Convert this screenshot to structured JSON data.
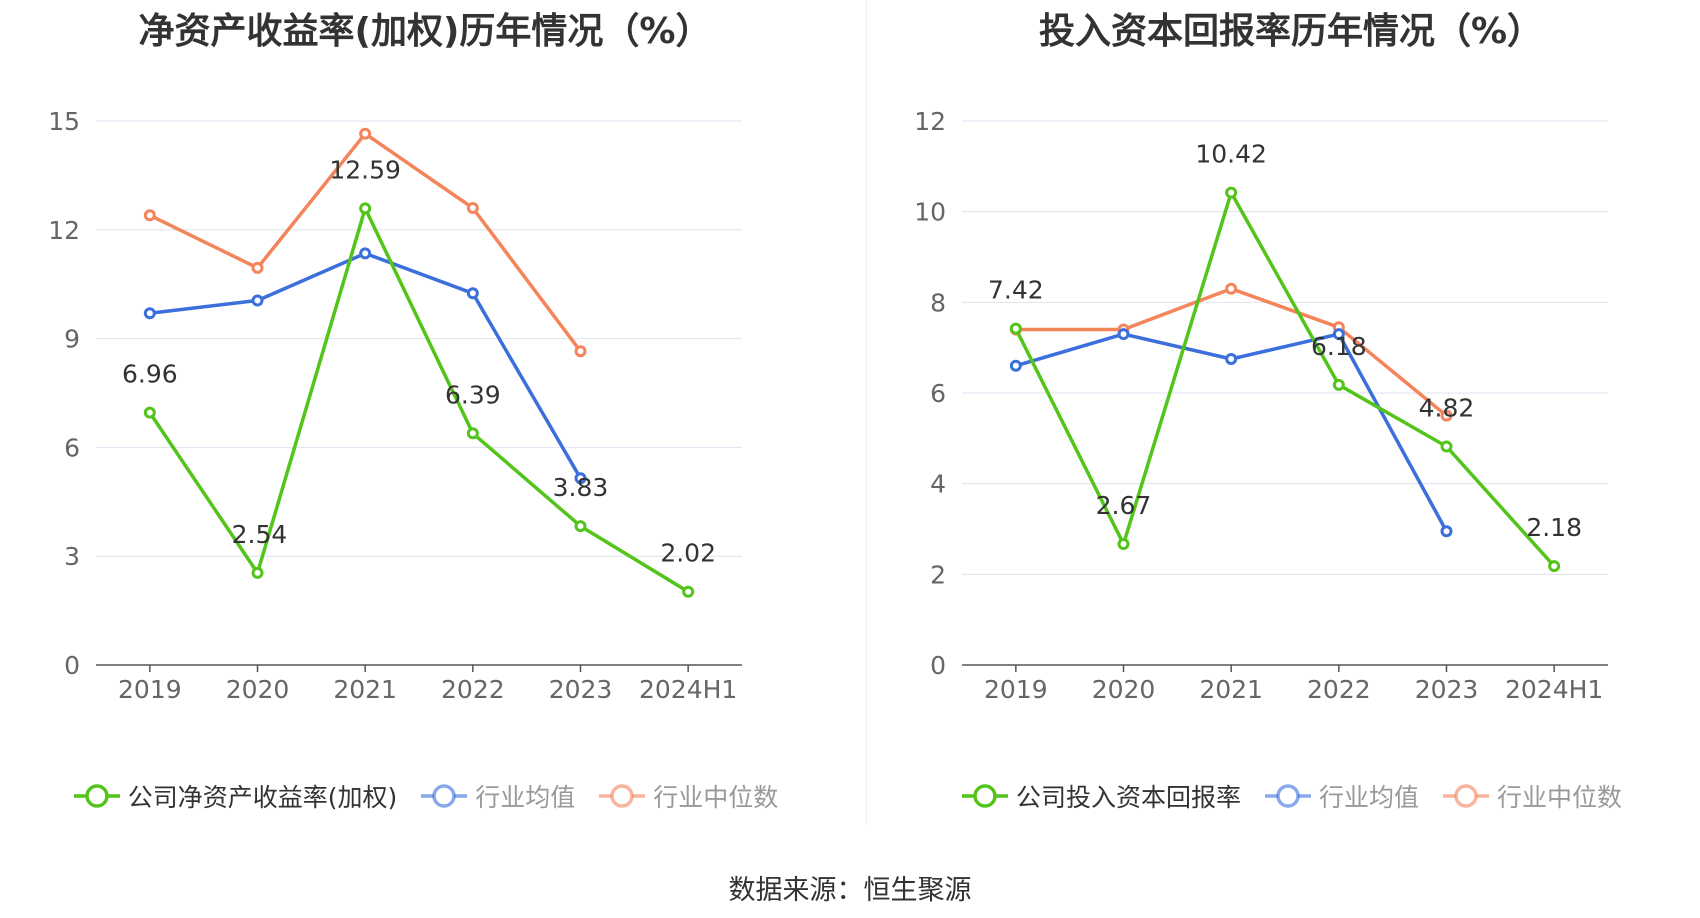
{
  "chart_data": [
    {
      "type": "line",
      "title": "净资产收益率(加权)历年情况（%）",
      "categories": [
        "2019",
        "2020",
        "2021",
        "2022",
        "2023",
        "2024H1"
      ],
      "ylim": [
        0,
        15
      ],
      "yticks": [
        0,
        3,
        6,
        9,
        12,
        15
      ],
      "grid": true,
      "legend_position": "bottom",
      "series": [
        {
          "name": "公司净资产收益率(加权)",
          "color": "#52c41a",
          "values": [
            6.96,
            2.54,
            12.59,
            6.39,
            3.83,
            2.02
          ],
          "labels": [
            "6.96",
            "2.54",
            "12.59",
            "6.39",
            "3.83",
            "2.02"
          ]
        },
        {
          "name": "行业均值",
          "color": "#3a6fdc",
          "values": [
            9.7,
            10.05,
            11.35,
            10.25,
            5.15,
            null
          ]
        },
        {
          "name": "行业中位数",
          "color": "#f4845a",
          "values": [
            12.4,
            10.95,
            14.65,
            12.6,
            8.65,
            null
          ]
        }
      ]
    },
    {
      "type": "line",
      "title": "投入资本回报率历年情况（%）",
      "categories": [
        "2019",
        "2020",
        "2021",
        "2022",
        "2023",
        "2024H1"
      ],
      "ylim": [
        0,
        12
      ],
      "yticks": [
        0,
        2,
        4,
        6,
        8,
        10,
        12
      ],
      "grid": true,
      "legend_position": "bottom",
      "series": [
        {
          "name": "公司投入资本回报率",
          "color": "#52c41a",
          "values": [
            7.42,
            2.67,
            10.42,
            6.18,
            4.82,
            2.18
          ],
          "labels": [
            "7.42",
            "2.67",
            "10.42",
            "6.18",
            "4.82",
            "2.18"
          ]
        },
        {
          "name": "行业均值",
          "color": "#3a6fdc",
          "values": [
            6.6,
            7.3,
            6.75,
            7.3,
            2.95,
            null
          ]
        },
        {
          "name": "行业中位数",
          "color": "#f4845a",
          "values": [
            7.4,
            7.4,
            8.3,
            7.45,
            5.5,
            null
          ]
        }
      ]
    }
  ],
  "footer": "数据来源：恒生聚源"
}
